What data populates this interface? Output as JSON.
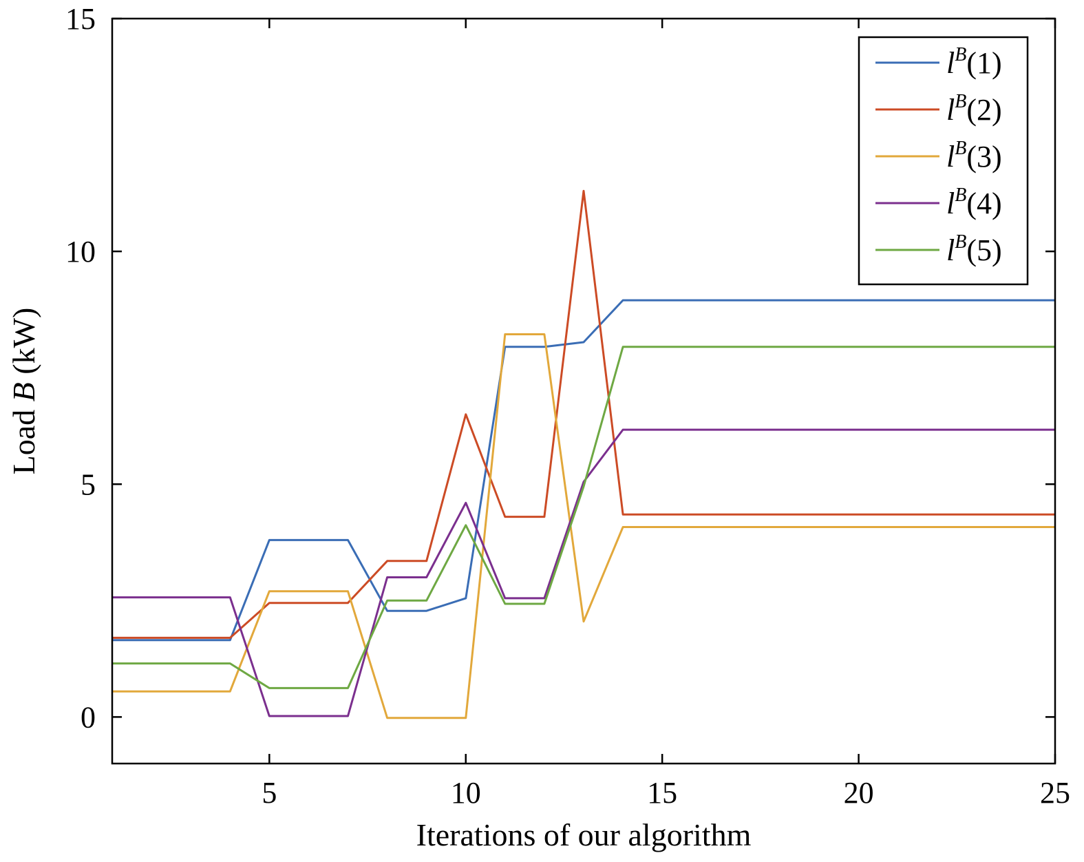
{
  "chart_data": {
    "type": "line",
    "xlabel": "Iterations of our algorithm",
    "ylabel_prefix": "Load ",
    "ylabel_var": "B",
    "ylabel_suffix": " (kW)",
    "xlim": [
      1,
      25
    ],
    "ylim": [
      -1,
      15
    ],
    "xticks": [
      5,
      10,
      15,
      20,
      25
    ],
    "yticks": [
      0,
      5,
      10,
      15
    ],
    "grid": false,
    "legend_position": "top-right",
    "x": [
      1,
      2,
      3,
      4,
      5,
      6,
      7,
      8,
      9,
      10,
      11,
      12,
      13,
      14,
      15,
      16,
      17,
      18,
      19,
      20,
      21,
      22,
      23,
      24,
      25
    ],
    "series": [
      {
        "name_var": "l",
        "name_sup": "B",
        "name_arg": "(1)",
        "color": "#3a6db5",
        "values": [
          1.65,
          1.65,
          1.65,
          1.65,
          3.8,
          3.8,
          3.8,
          2.28,
          2.28,
          2.55,
          7.95,
          7.95,
          8.05,
          8.95,
          8.95,
          8.95,
          8.95,
          8.95,
          8.95,
          8.95,
          8.95,
          8.95,
          8.95,
          8.95,
          8.95
        ]
      },
      {
        "name_var": "l",
        "name_sup": "B",
        "name_arg": "(2)",
        "color": "#cc4b25",
        "values": [
          1.7,
          1.7,
          1.7,
          1.7,
          2.45,
          2.45,
          2.45,
          3.35,
          3.35,
          6.5,
          4.3,
          4.3,
          11.3,
          4.35,
          4.35,
          4.35,
          4.35,
          4.35,
          4.35,
          4.35,
          4.35,
          4.35,
          4.35,
          4.35,
          4.35
        ]
      },
      {
        "name_var": "l",
        "name_sup": "B",
        "name_arg": "(3)",
        "color": "#e2a83b",
        "values": [
          0.55,
          0.55,
          0.55,
          0.55,
          2.7,
          2.7,
          2.7,
          -0.02,
          -0.02,
          -0.02,
          8.22,
          8.22,
          2.05,
          4.08,
          4.08,
          4.08,
          4.08,
          4.08,
          4.08,
          4.08,
          4.08,
          4.08,
          4.08,
          4.08,
          4.08
        ]
      },
      {
        "name_var": "l",
        "name_sup": "B",
        "name_arg": "(4)",
        "color": "#7b2f8e",
        "values": [
          2.57,
          2.57,
          2.57,
          2.57,
          0.02,
          0.02,
          0.02,
          3.0,
          3.0,
          4.6,
          2.55,
          2.55,
          5.05,
          6.17,
          6.17,
          6.17,
          6.17,
          6.17,
          6.17,
          6.17,
          6.17,
          6.17,
          6.17,
          6.17,
          6.17
        ]
      },
      {
        "name_var": "l",
        "name_sup": "B",
        "name_arg": "(5)",
        "color": "#6ea843",
        "values": [
          1.15,
          1.15,
          1.15,
          1.15,
          0.62,
          0.62,
          0.62,
          2.5,
          2.5,
          4.12,
          2.43,
          2.43,
          4.95,
          7.95,
          7.95,
          7.95,
          7.95,
          7.95,
          7.95,
          7.95,
          7.95,
          7.95,
          7.95,
          7.95,
          7.95
        ]
      }
    ]
  }
}
